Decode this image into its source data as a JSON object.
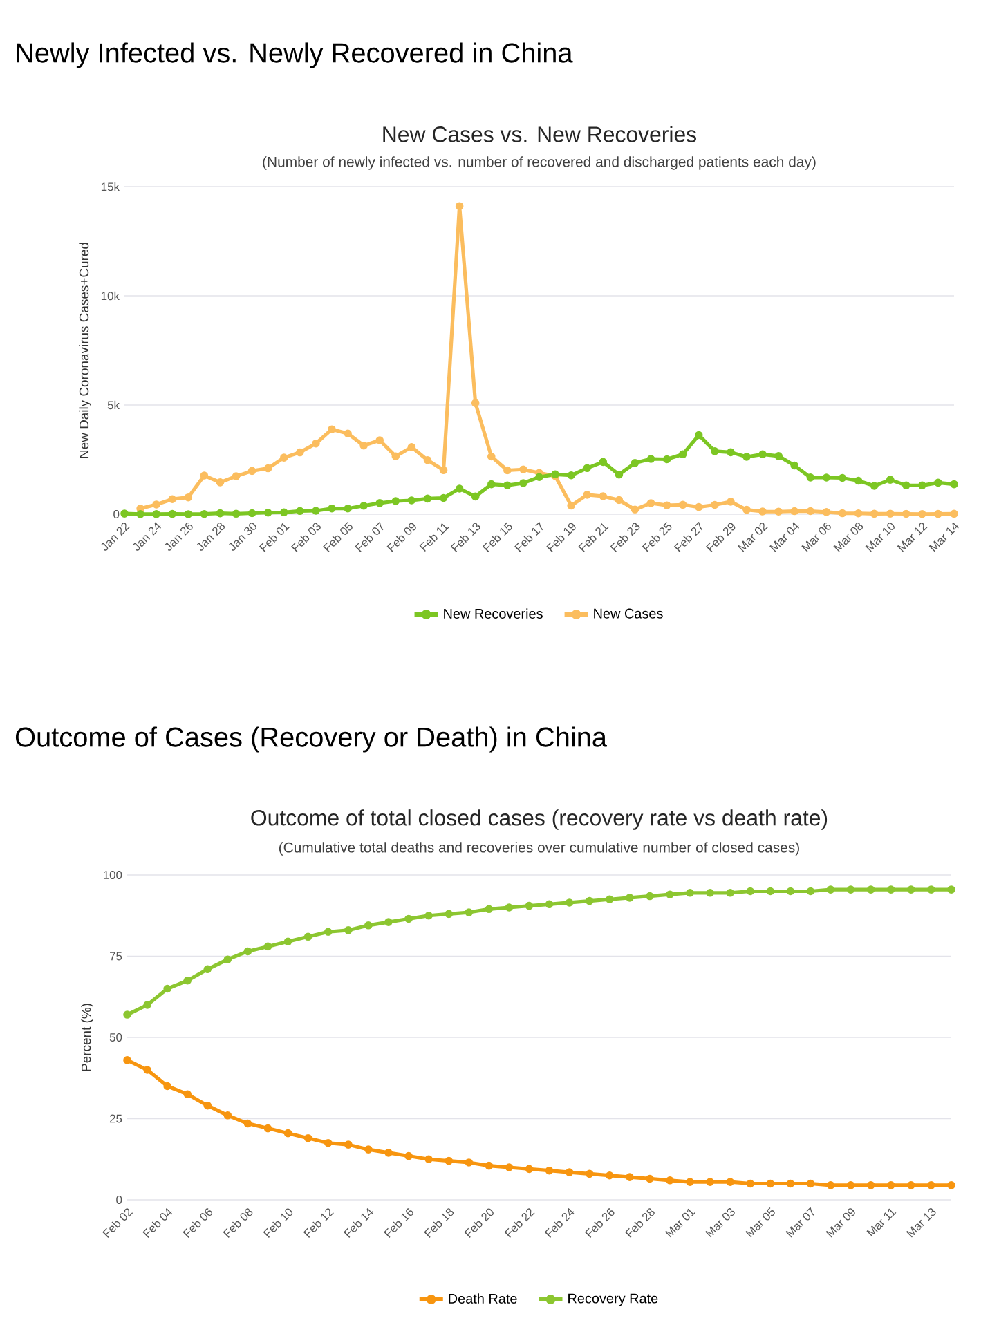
{
  "chart_data": [
    {
      "type": "line",
      "title": "Newly Infected vs. Newly Recovered in China",
      "subtitle": "New Cases vs. New Recoveries",
      "annotations": [
        "(Number of newly infected vs. number of recovered and discharged patients each day)"
      ],
      "ylabel": "New Daily Coronavirus Cases+Cured",
      "categories": [
        "Jan 22",
        null,
        "Jan 24",
        null,
        "Jan 26",
        null,
        "Jan 28",
        null,
        "Jan 30",
        null,
        "Feb 01",
        null,
        "Feb 03",
        null,
        "Feb 05",
        null,
        "Feb 07",
        null,
        "Feb 09",
        null,
        "Feb 11",
        null,
        "Feb 13",
        null,
        "Feb 15",
        null,
        "Feb 17",
        null,
        "Feb 19",
        null,
        "Feb 21",
        null,
        "Feb 23",
        null,
        "Feb 25",
        null,
        "Feb 27",
        null,
        "Feb 29",
        null,
        "Mar 02",
        null,
        "Mar 04",
        null,
        "Mar 06",
        null,
        "Mar 08",
        null,
        "Mar 10",
        null,
        "Mar 12",
        null,
        "Mar 14"
      ],
      "series": [
        {
          "name": "New Recoveries",
          "color": "#7cc623",
          "values": [
            28,
            6,
            3,
            11,
            2,
            9,
            43,
            21,
            47,
            72,
            85,
            147,
            157,
            262,
            261,
            387,
            510,
            600,
            632,
            716,
            744,
            1171,
            810,
            1373,
            1323,
            1425,
            1701,
            1824,
            1779,
            2109,
            2393,
            1814,
            2347,
            2531,
            2515,
            2743,
            3622,
            2884,
            2836,
            2628,
            2742,
            2664,
            2228,
            1681,
            1678,
            1661,
            1535,
            1297,
            1578,
            1318,
            1318,
            1443,
            1373
          ]
        },
        {
          "name": "New Cases",
          "color": "#fbbd5e",
          "values": [
            null,
            259,
            444,
            688,
            769,
            1771,
            1459,
            1737,
            1982,
            2102,
            2590,
            2829,
            3235,
            3887,
            3694,
            3143,
            3385,
            2652,
            3073,
            2478,
            2015,
            14108,
            5090,
            2641,
            2008,
            2048,
            1886,
            1749,
            394,
            889,
            823,
            648,
            214,
            508,
            406,
            433,
            327,
            427,
            573,
            202,
            125,
            119,
            139,
            143,
            99,
            44,
            40,
            19,
            24,
            15,
            8,
            11,
            20
          ]
        }
      ],
      "ylim": [
        0,
        15000
      ],
      "yticks": [
        0,
        {
          "value": 5000,
          "label": "5k"
        },
        {
          "value": 10000,
          "label": "10k"
        },
        {
          "value": 15000,
          "label": "15k"
        }
      ],
      "grid": "y",
      "legend": "bottom",
      "marker": "circle",
      "line_style": "solid"
    },
    {
      "type": "line",
      "title": "Outcome of Cases (Recovery or Death) in China",
      "subtitle": "Outcome of total closed cases (recovery rate vs death rate)",
      "annotations": [
        "(Cumulative total deaths and recoveries over cumulative number of closed cases)"
      ],
      "ylabel": "Percent (%)",
      "categories": [
        "Feb 02",
        null,
        "Feb 04",
        null,
        "Feb 06",
        null,
        "Feb 08",
        null,
        "Feb 10",
        null,
        "Feb 12",
        null,
        "Feb 14",
        null,
        "Feb 16",
        null,
        "Feb 18",
        null,
        "Feb 20",
        null,
        "Feb 22",
        null,
        "Feb 24",
        null,
        "Feb 26",
        null,
        "Feb 28",
        null,
        "Mar 01",
        null,
        "Mar 03",
        null,
        "Mar 05",
        null,
        "Mar 07",
        null,
        "Mar 09",
        null,
        "Mar 11",
        null,
        "Mar 13",
        null
      ],
      "series": [
        {
          "name": "Death Rate",
          "color": "#f7950f",
          "values": [
            43,
            40,
            35,
            32.5,
            29,
            26,
            23.5,
            22,
            20.5,
            19,
            17.5,
            17,
            15.5,
            14.5,
            13.5,
            12.5,
            12,
            11.5,
            10.5,
            10,
            9.5,
            9,
            8.5,
            8,
            7.5,
            7,
            6.5,
            6,
            5.5,
            5.5,
            5.5,
            5,
            5,
            5,
            5,
            4.5,
            4.5,
            4.5,
            4.5,
            4.5,
            4.5,
            4.5
          ]
        },
        {
          "name": "Recovery Rate",
          "color": "#8cc630",
          "values": [
            57,
            60,
            65,
            67.5,
            71,
            74,
            76.5,
            78,
            79.5,
            81,
            82.5,
            83,
            84.5,
            85.5,
            86.5,
            87.5,
            88,
            88.5,
            89.5,
            90,
            90.5,
            91,
            91.5,
            92,
            92.5,
            93,
            93.5,
            94,
            94.5,
            94.5,
            94.5,
            95,
            95,
            95,
            95,
            95.5,
            95.5,
            95.5,
            95.5,
            95.5,
            95.5,
            95.5
          ]
        }
      ],
      "ylim": [
        0,
        100
      ],
      "yticks": [
        0,
        25,
        50,
        75,
        100
      ],
      "grid": "y",
      "legend": "bottom",
      "marker": "circle",
      "line_style": "solid"
    }
  ]
}
